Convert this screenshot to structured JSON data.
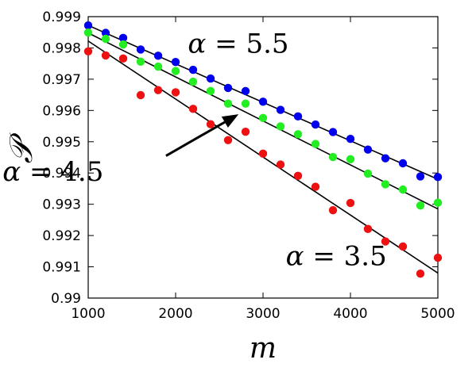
{
  "chart_data": {
    "type": "scatter",
    "title": "",
    "xlabel": "m",
    "ylabel": "𝒫",
    "xlim": [
      1000,
      5000
    ],
    "ylim": [
      0.99,
      0.999
    ],
    "xticks": [
      1000,
      2000,
      3000,
      4000,
      5000
    ],
    "xtick_labels": [
      "1000",
      "2000",
      "3000",
      "4000",
      "5000"
    ],
    "yticks": [
      0.99,
      0.991,
      0.992,
      0.993,
      0.994,
      0.995,
      0.996,
      0.997,
      0.998,
      0.999
    ],
    "ytick_labels": [
      "0.99",
      "0.991",
      "0.992",
      "0.993",
      "0.994",
      "0.995",
      "0.996",
      "0.997",
      "0.998",
      "0.999"
    ],
    "grid": false,
    "series": [
      {
        "label_text": "α = 5.5",
        "label_symbol": "α",
        "label_value": "5.5",
        "color": "#0000ee",
        "x": [
          1000,
          1200,
          1400,
          1600,
          1800,
          2000,
          2200,
          2400,
          2600,
          2800,
          3000,
          3200,
          3400,
          3600,
          3800,
          4000,
          4200,
          4400,
          4600,
          4800,
          5000
        ],
        "y": [
          0.99872,
          0.99848,
          0.99832,
          0.99795,
          0.99775,
          0.99755,
          0.9973,
          0.99702,
          0.99672,
          0.99662,
          0.99628,
          0.99602,
          0.99581,
          0.99555,
          0.99531,
          0.99509,
          0.99475,
          0.99447,
          0.99431,
          0.99389,
          0.99387
        ],
        "fit": [
          [
            1000,
            0.99872
          ],
          [
            5000,
            0.9938
          ]
        ]
      },
      {
        "label_text": "α = 4.5",
        "label_symbol": "α",
        "label_value": "4.5",
        "color": "#22ee22",
        "x": [
          1000,
          1200,
          1400,
          1600,
          1800,
          2000,
          2200,
          2400,
          2600,
          2800,
          3000,
          3200,
          3400,
          3600,
          3800,
          4000,
          4200,
          4400,
          4600,
          4800,
          5000
        ],
        "y": [
          0.99849,
          0.99829,
          0.99811,
          0.99756,
          0.9974,
          0.99726,
          0.99692,
          0.99662,
          0.99622,
          0.99622,
          0.99576,
          0.99549,
          0.99524,
          0.99493,
          0.99451,
          0.99444,
          0.99398,
          0.99364,
          0.99347,
          0.99296,
          0.99305
        ],
        "fit": [
          [
            1000,
            0.99848
          ],
          [
            5000,
            0.99285
          ]
        ]
      },
      {
        "label_text": "α = 3.5",
        "label_symbol": "α",
        "label_value": "3.5",
        "color": "#ee1111",
        "x": [
          1000,
          1200,
          1400,
          1600,
          1800,
          2000,
          2200,
          2400,
          2600,
          2800,
          3000,
          3200,
          3400,
          3600,
          3800,
          4000,
          4200,
          4400,
          4600,
          4800,
          5000
        ],
        "y": [
          0.99789,
          0.99776,
          0.99766,
          0.99649,
          0.99665,
          0.99658,
          0.99605,
          0.99556,
          0.99505,
          0.99532,
          0.99462,
          0.99427,
          0.99391,
          0.99356,
          0.99281,
          0.99304,
          0.99221,
          0.99181,
          0.99165,
          0.99078,
          0.99129
        ],
        "fit": [
          [
            1000,
            0.99822
          ],
          [
            5000,
            0.9908
          ]
        ]
      }
    ],
    "annotations": [
      {
        "text": "α = 5.5",
        "symbol": "α",
        "value": "5.5",
        "x": 2140,
        "y": 0.99785
      },
      {
        "text": "α = 4.5",
        "symbol": "α",
        "value": "4.5",
        "x": 20,
        "y": 0.99375
      },
      {
        "text": "α = 3.5",
        "symbol": "α",
        "value": "3.5",
        "x": 3260,
        "y": 0.99105
      }
    ],
    "arrow": {
      "from": [
        1890,
        0.99455
      ],
      "to": [
        2720,
        0.99588
      ]
    }
  }
}
